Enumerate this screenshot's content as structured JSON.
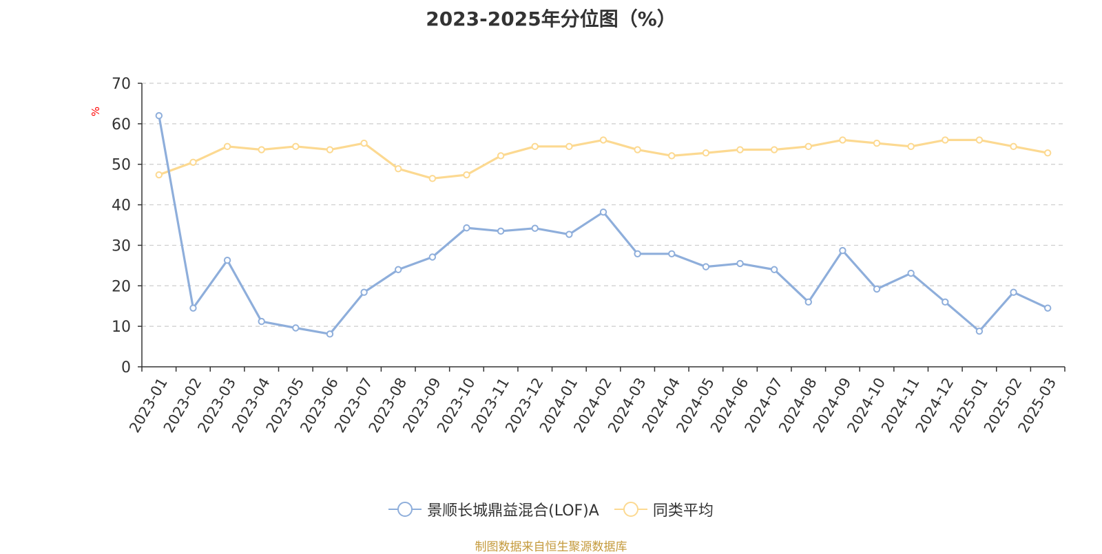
{
  "chart_data": {
    "type": "line",
    "title": "2023-2025年分位图（%）",
    "ylabel": "%",
    "xlabel": "",
    "ylim": [
      0,
      70
    ],
    "yticks": [
      0,
      10,
      20,
      30,
      40,
      50,
      60,
      70
    ],
    "grid": true,
    "legend_position": "bottom-center",
    "categories": [
      "2023-01",
      "2023-02",
      "2023-03",
      "2023-04",
      "2023-05",
      "2023-06",
      "2023-07",
      "2023-08",
      "2023-09",
      "2023-10",
      "2023-11",
      "2023-12",
      "2024-01",
      "2024-02",
      "2024-03",
      "2024-04",
      "2024-05",
      "2024-06",
      "2024-07",
      "2024-08",
      "2024-09",
      "2024-10",
      "2024-11",
      "2024-12",
      "2025-01",
      "2025-02",
      "2025-03"
    ],
    "series": [
      {
        "name": "景顺长城鼎益混合(LOF)A",
        "color": "#8eaedb",
        "values": [
          62,
          14.5,
          26.3,
          11.2,
          9.6,
          8.1,
          18.4,
          24,
          27.1,
          34.3,
          33.5,
          34.2,
          32.7,
          38.2,
          27.9,
          27.9,
          24.7,
          25.5,
          24,
          16,
          28.7,
          19.2,
          23.1,
          16,
          8.8,
          18.4,
          14.5
        ]
      },
      {
        "name": "同类平均",
        "color": "#fcd991",
        "values": [
          47.4,
          50.5,
          54.4,
          53.6,
          54.4,
          53.6,
          55.2,
          48.9,
          46.5,
          47.4,
          52.1,
          54.4,
          54.4,
          56,
          53.6,
          52.1,
          52.8,
          53.6,
          53.6,
          54.4,
          56,
          55.2,
          54.4,
          56,
          56,
          54.4,
          52.8
        ]
      }
    ]
  },
  "footer": {
    "source": "制图数据来自恒生聚源数据库"
  },
  "colors": {
    "grid": "#cccccc",
    "axis": "#333333",
    "ylabel": "#ff0000",
    "source": "#c49a3c"
  }
}
